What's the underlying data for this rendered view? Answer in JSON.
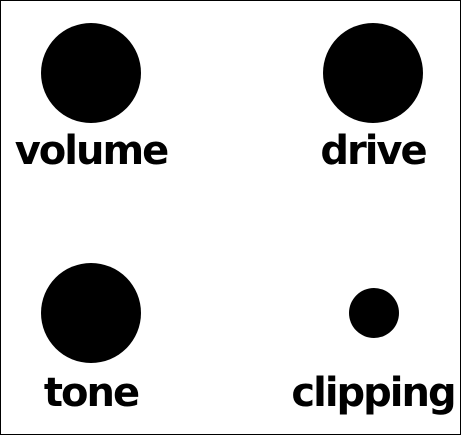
{
  "controls": [
    {
      "id": "volume",
      "label": "volume",
      "knob_size": "large"
    },
    {
      "id": "drive",
      "label": "drive",
      "knob_size": "large"
    },
    {
      "id": "tone",
      "label": "tone",
      "knob_size": "large"
    },
    {
      "id": "clipping",
      "label": "clipping",
      "knob_size": "small"
    }
  ],
  "colors": {
    "knob": "#000000",
    "label": "#000000",
    "background": "#ffffff",
    "border": "#000000"
  }
}
